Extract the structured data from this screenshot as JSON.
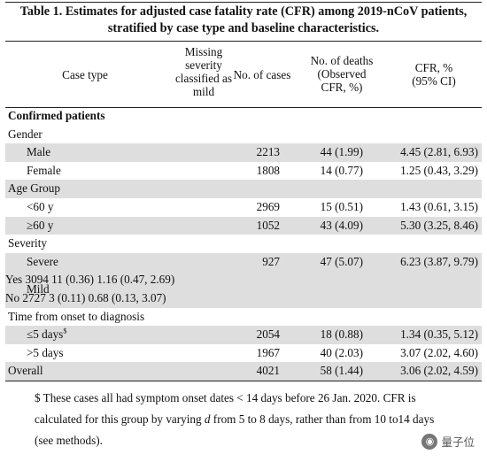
{
  "title_line1": "Table 1. Estimates for adjusted case fatality rate (CFR) among 2019-nCoV patients,",
  "title_line2": "stratified by case type and baseline characteristics.",
  "headers": {
    "case_type": "Case type",
    "missing": [
      "Missing",
      "severity",
      "classified as",
      "mild"
    ],
    "cases": "No. of cases",
    "deaths": [
      "No. of deaths",
      "(Observed",
      "CFR, %)"
    ],
    "cfr": [
      "CFR, %",
      "(95% CI)"
    ]
  },
  "sections": {
    "confirmed": "Confirmed patients",
    "gender": "Gender",
    "age": "Age Group",
    "severity": "Severity",
    "time": "Time from onset to diagnosis"
  },
  "rows": {
    "male": {
      "label": "Male",
      "cases": "2213",
      "deaths": "44 (1.99)",
      "cfr": "4.45 (2.81, 6.93)"
    },
    "female": {
      "label": "Female",
      "cases": "1808",
      "deaths": "14 (0.77)",
      "cfr": "1.25 (0.43, 3.29)"
    },
    "lt60": {
      "label": "<60 y",
      "cases": "2969",
      "deaths": "15 (0.51)",
      "cfr": "1.43 (0.61, 3.15)"
    },
    "ge60": {
      "label": "≥60 y",
      "cases": "1052",
      "deaths": "43 (4.09)",
      "cfr": "5.30 (3.25, 8.46)"
    },
    "severe": {
      "label": "Severe",
      "cases": "927",
      "deaths": "47 (5.07)",
      "cfr": "6.23 (3.87, 9.79)"
    },
    "mild_label": "Mild",
    "mild_yes": {
      "missing": "Yes",
      "cases": "3094",
      "deaths": "11 (0.36)",
      "cfr": "1.16 (0.47, 2.69)"
    },
    "mild_no": {
      "missing": "No",
      "cases": "2727",
      "deaths": "3 (0.11)",
      "cfr": "0.68 (0.13, 3.07)"
    },
    "le5": {
      "label": "≤5 days",
      "sup": "$",
      "cases": "2054",
      "deaths": "18 (0.88)",
      "cfr": "1.34 (0.35, 5.12)"
    },
    "gt5": {
      "label": ">5 days",
      "cases": "1967",
      "deaths": "40 (2.03)",
      "cfr": "3.07 (2.02, 4.60)"
    },
    "overall": {
      "label": "Overall",
      "cases": "4021",
      "deaths": "58 (1.44)",
      "cfr": "3.06 (2.02, 4.59)"
    }
  },
  "footnote": {
    "line1": "$ These cases all had symptom onset dates < 14 days before 26 Jan. 2020. CFR is",
    "line2_pre": "calculated for this group by varying ",
    "line2_var": "d",
    "line2_post": " from 5 to 8 days, rather than from 10 to14 days",
    "line3": "(see methods)."
  },
  "watermark": "量子位"
}
